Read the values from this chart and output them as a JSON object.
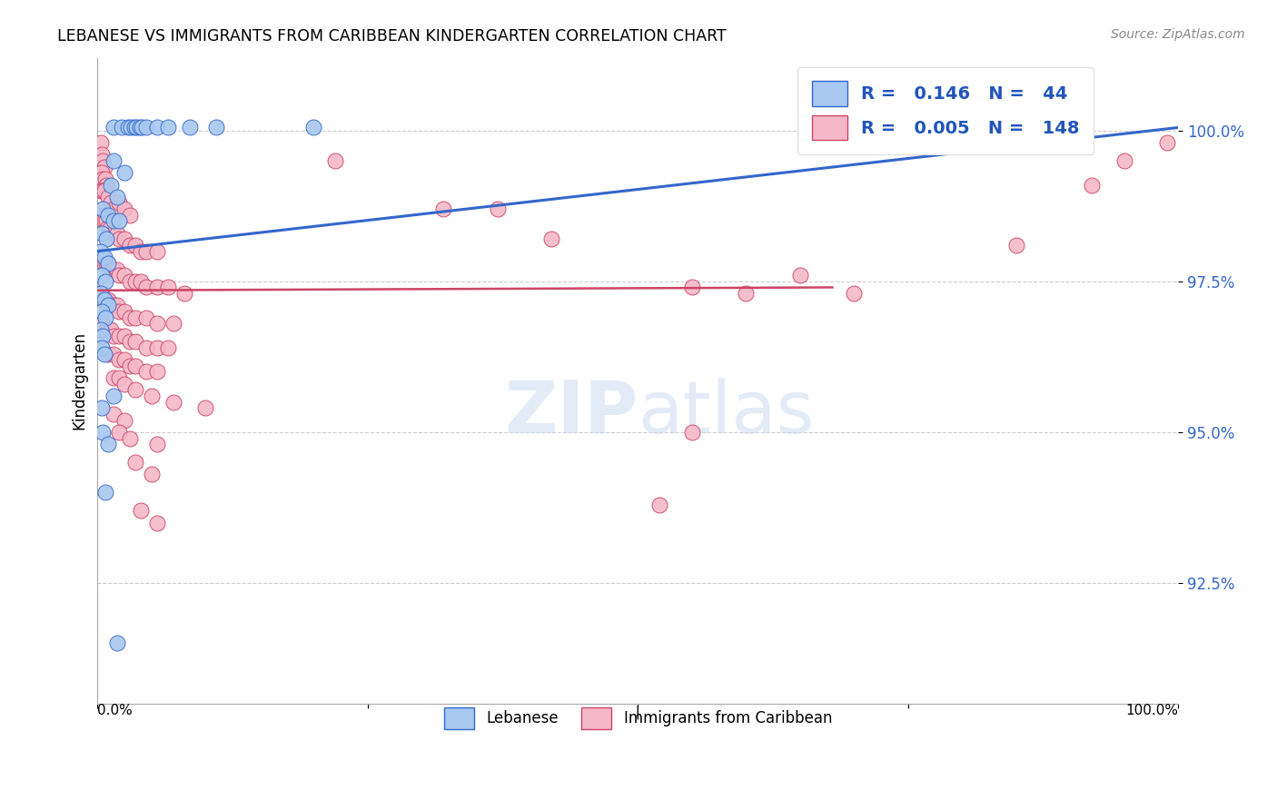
{
  "title": "LEBANESE VS IMMIGRANTS FROM CARIBBEAN KINDERGARTEN CORRELATION CHART",
  "source": "Source: ZipAtlas.com",
  "ylabel": "Kindergarten",
  "y_tick_labels": [
    "92.5%",
    "95.0%",
    "97.5%",
    "100.0%"
  ],
  "y_tick_values": [
    92.5,
    95.0,
    97.5,
    100.0
  ],
  "x_range": [
    0,
    100
  ],
  "y_range": [
    90.5,
    101.2
  ],
  "legend_blue_R": "0.146",
  "legend_blue_N": "44",
  "legend_pink_R": "0.005",
  "legend_pink_N": "148",
  "legend_labels": [
    "Lebanese",
    "Immigrants from Caribbean"
  ],
  "blue_color": "#A8C8F0",
  "pink_color": "#F5B8C8",
  "trendline_blue_color": "#3366CC",
  "trendline_pink_color": "#CC4466",
  "watermark": "ZIPatlas",
  "blue_scatter": [
    [
      1.5,
      100.05
    ],
    [
      2.2,
      100.05
    ],
    [
      2.8,
      100.05
    ],
    [
      3.1,
      100.05
    ],
    [
      3.4,
      100.05
    ],
    [
      3.6,
      100.05
    ],
    [
      3.9,
      100.05
    ],
    [
      4.1,
      100.05
    ],
    [
      4.5,
      100.05
    ],
    [
      5.5,
      100.05
    ],
    [
      6.5,
      100.05
    ],
    [
      8.5,
      100.05
    ],
    [
      11.0,
      100.05
    ],
    [
      20.0,
      100.05
    ],
    [
      1.5,
      99.5
    ],
    [
      2.5,
      99.3
    ],
    [
      1.2,
      99.1
    ],
    [
      1.8,
      98.9
    ],
    [
      0.5,
      98.7
    ],
    [
      1.0,
      98.6
    ],
    [
      1.5,
      98.5
    ],
    [
      2.0,
      98.5
    ],
    [
      0.4,
      98.3
    ],
    [
      0.8,
      98.2
    ],
    [
      0.3,
      98.0
    ],
    [
      0.6,
      97.9
    ],
    [
      1.0,
      97.8
    ],
    [
      0.4,
      97.6
    ],
    [
      0.7,
      97.5
    ],
    [
      0.3,
      97.3
    ],
    [
      0.6,
      97.2
    ],
    [
      1.0,
      97.1
    ],
    [
      0.4,
      97.0
    ],
    [
      0.7,
      96.9
    ],
    [
      0.3,
      96.7
    ],
    [
      0.5,
      96.6
    ],
    [
      0.4,
      96.4
    ],
    [
      0.6,
      96.3
    ],
    [
      1.5,
      95.6
    ],
    [
      0.4,
      95.4
    ],
    [
      0.5,
      95.0
    ],
    [
      1.0,
      94.8
    ],
    [
      0.7,
      94.0
    ],
    [
      1.8,
      91.5
    ],
    [
      87.0,
      100.05
    ]
  ],
  "pink_scatter": [
    [
      0.3,
      99.8
    ],
    [
      0.4,
      99.6
    ],
    [
      0.5,
      99.5
    ],
    [
      0.6,
      99.4
    ],
    [
      0.4,
      99.3
    ],
    [
      0.5,
      99.2
    ],
    [
      0.7,
      99.2
    ],
    [
      0.8,
      99.1
    ],
    [
      0.3,
      99.0
    ],
    [
      0.5,
      99.0
    ],
    [
      0.6,
      99.0
    ],
    [
      1.0,
      98.9
    ],
    [
      1.2,
      98.8
    ],
    [
      1.5,
      98.7
    ],
    [
      2.0,
      98.8
    ],
    [
      2.5,
      98.7
    ],
    [
      3.0,
      98.6
    ],
    [
      0.3,
      98.6
    ],
    [
      0.5,
      98.5
    ],
    [
      0.6,
      98.5
    ],
    [
      0.8,
      98.5
    ],
    [
      1.0,
      98.4
    ],
    [
      1.2,
      98.4
    ],
    [
      1.5,
      98.3
    ],
    [
      1.8,
      98.3
    ],
    [
      2.0,
      98.2
    ],
    [
      2.5,
      98.2
    ],
    [
      3.0,
      98.1
    ],
    [
      3.5,
      98.1
    ],
    [
      4.0,
      98.0
    ],
    [
      4.5,
      98.0
    ],
    [
      5.5,
      98.0
    ],
    [
      0.3,
      97.9
    ],
    [
      0.5,
      97.9
    ],
    [
      0.6,
      97.8
    ],
    [
      0.8,
      97.8
    ],
    [
      1.0,
      97.8
    ],
    [
      1.2,
      97.7
    ],
    [
      1.5,
      97.7
    ],
    [
      1.8,
      97.7
    ],
    [
      2.0,
      97.6
    ],
    [
      2.5,
      97.6
    ],
    [
      3.0,
      97.5
    ],
    [
      3.5,
      97.5
    ],
    [
      4.0,
      97.5
    ],
    [
      4.5,
      97.4
    ],
    [
      5.5,
      97.4
    ],
    [
      6.5,
      97.4
    ],
    [
      8.0,
      97.3
    ],
    [
      0.3,
      97.3
    ],
    [
      0.5,
      97.2
    ],
    [
      0.7,
      97.2
    ],
    [
      1.0,
      97.2
    ],
    [
      1.2,
      97.1
    ],
    [
      1.5,
      97.1
    ],
    [
      1.8,
      97.1
    ],
    [
      2.0,
      97.0
    ],
    [
      2.5,
      97.0
    ],
    [
      3.0,
      96.9
    ],
    [
      3.5,
      96.9
    ],
    [
      4.5,
      96.9
    ],
    [
      5.5,
      96.8
    ],
    [
      7.0,
      96.8
    ],
    [
      0.5,
      96.8
    ],
    [
      0.8,
      96.7
    ],
    [
      1.0,
      96.7
    ],
    [
      1.2,
      96.7
    ],
    [
      1.5,
      96.6
    ],
    [
      2.0,
      96.6
    ],
    [
      2.5,
      96.6
    ],
    [
      3.0,
      96.5
    ],
    [
      3.5,
      96.5
    ],
    [
      4.5,
      96.4
    ],
    [
      5.5,
      96.4
    ],
    [
      6.5,
      96.4
    ],
    [
      1.0,
      96.3
    ],
    [
      1.5,
      96.3
    ],
    [
      2.0,
      96.2
    ],
    [
      2.5,
      96.2
    ],
    [
      3.0,
      96.1
    ],
    [
      3.5,
      96.1
    ],
    [
      4.5,
      96.0
    ],
    [
      5.5,
      96.0
    ],
    [
      1.5,
      95.9
    ],
    [
      2.0,
      95.9
    ],
    [
      2.5,
      95.8
    ],
    [
      3.5,
      95.7
    ],
    [
      5.0,
      95.6
    ],
    [
      7.0,
      95.5
    ],
    [
      10.0,
      95.4
    ],
    [
      1.5,
      95.3
    ],
    [
      2.5,
      95.2
    ],
    [
      2.0,
      95.0
    ],
    [
      3.0,
      94.9
    ],
    [
      5.5,
      94.8
    ],
    [
      3.5,
      94.5
    ],
    [
      5.0,
      94.3
    ],
    [
      4.0,
      93.7
    ],
    [
      5.5,
      93.5
    ],
    [
      22.0,
      99.5
    ],
    [
      32.0,
      98.7
    ],
    [
      37.0,
      98.7
    ],
    [
      42.0,
      98.2
    ],
    [
      55.0,
      97.4
    ],
    [
      60.0,
      97.3
    ],
    [
      65.0,
      97.6
    ],
    [
      70.0,
      97.3
    ],
    [
      55.0,
      95.0
    ],
    [
      52.0,
      93.8
    ],
    [
      80.0,
      99.9
    ],
    [
      85.0,
      98.1
    ],
    [
      92.0,
      99.1
    ],
    [
      95.0,
      99.5
    ],
    [
      99.0,
      99.8
    ]
  ],
  "blue_trendline_x": [
    0,
    100
  ],
  "blue_trendline_y": [
    98.0,
    100.05
  ],
  "pink_trendline_x": [
    0,
    68
  ],
  "pink_trendline_y": [
    97.35,
    97.4
  ]
}
